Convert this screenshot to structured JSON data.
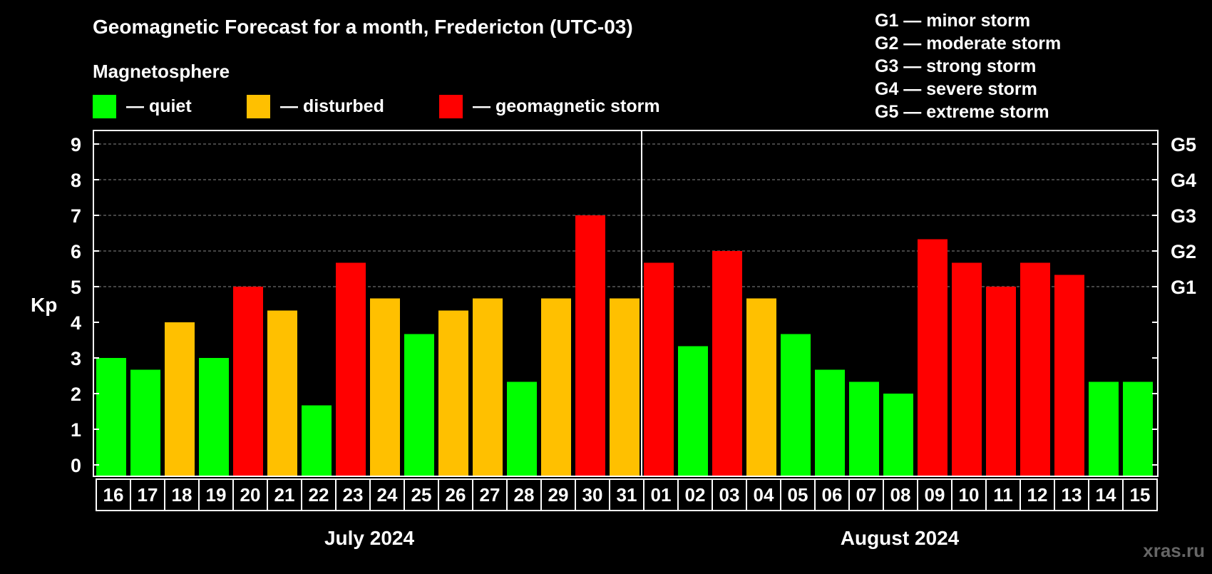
{
  "title": "Geomagnetic Forecast for a month, Fredericton (UTC-03)",
  "legend": {
    "heading": "Magnetosphere",
    "items": [
      {
        "label": "— quiet",
        "color": "#00FF00"
      },
      {
        "label": "— disturbed",
        "color": "#FFC000"
      },
      {
        "label": "— geomagnetic storm",
        "color": "#FF0000"
      }
    ]
  },
  "storm_scale": [
    "G1 — minor storm",
    "G2 — moderate storm",
    "G3 — strong storm",
    "G4 — severe storm",
    "G5 — extreme storm"
  ],
  "watermark": "xras.ru",
  "chart_data": {
    "type": "bar",
    "ylabel": "Kp",
    "ylim": [
      0,
      9
    ],
    "yticks": [
      "0",
      "1",
      "2",
      "3",
      "4",
      "5",
      "6",
      "7",
      "8",
      "9"
    ],
    "right_axis_labels": [
      {
        "kp": 5,
        "label": "G1"
      },
      {
        "kp": 6,
        "label": "G2"
      },
      {
        "kp": 7,
        "label": "G3"
      },
      {
        "kp": 8,
        "label": "G4"
      },
      {
        "kp": 9,
        "label": "G5"
      }
    ],
    "months": [
      {
        "label": "July 2024",
        "days": 16
      },
      {
        "label": "August 2024",
        "days": 15
      }
    ],
    "categories": [
      "16",
      "17",
      "18",
      "19",
      "20",
      "21",
      "22",
      "23",
      "24",
      "25",
      "26",
      "27",
      "28",
      "29",
      "30",
      "31",
      "01",
      "02",
      "03",
      "04",
      "05",
      "06",
      "07",
      "08",
      "09",
      "10",
      "11",
      "12",
      "13",
      "14",
      "15"
    ],
    "values": [
      3.0,
      2.67,
      4.0,
      3.0,
      5.0,
      4.33,
      1.67,
      5.67,
      4.67,
      3.67,
      4.33,
      4.67,
      2.33,
      4.67,
      7.0,
      4.67,
      5.67,
      3.33,
      6.0,
      4.67,
      3.67,
      2.67,
      2.33,
      2.0,
      6.33,
      5.67,
      5.0,
      5.67,
      5.33,
      2.33,
      2.33
    ],
    "levels": [
      "quiet",
      "quiet",
      "disturbed",
      "quiet",
      "storm",
      "disturbed",
      "quiet",
      "storm",
      "disturbed",
      "quiet",
      "disturbed",
      "disturbed",
      "quiet",
      "disturbed",
      "storm",
      "disturbed",
      "storm",
      "quiet",
      "storm",
      "disturbed",
      "quiet",
      "quiet",
      "quiet",
      "quiet",
      "storm",
      "storm",
      "storm",
      "storm",
      "storm",
      "quiet",
      "quiet"
    ],
    "colors": {
      "quiet": "#00FF00",
      "disturbed": "#FFC000",
      "storm": "#FF0000"
    },
    "grid": true
  }
}
